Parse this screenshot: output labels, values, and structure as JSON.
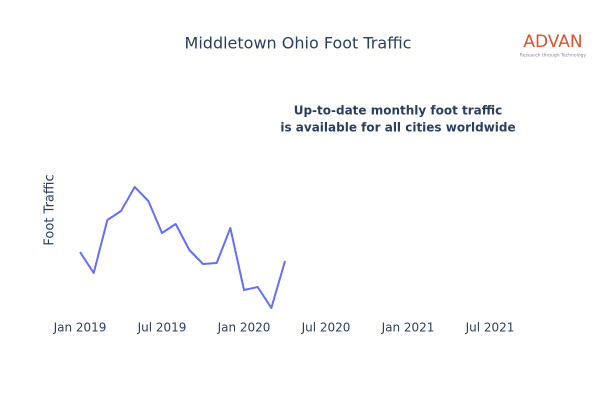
{
  "chart_data": {
    "type": "line",
    "title": "Middletown Ohio Foot Traffic",
    "y_label": "Foot Traffic",
    "annotation": [
      "Up-to-date monthly foot traffic",
      "is available for all cities worldwide"
    ],
    "x": [
      "2019-01",
      "2019-02",
      "2019-03",
      "2019-04",
      "2019-05",
      "2019-06",
      "2019-07",
      "2019-08",
      "2019-09",
      "2019-10",
      "2019-11",
      "2019-12",
      "2020-01",
      "2020-02",
      "2020-03",
      "2020-04"
    ],
    "series": [
      {
        "name": "Foot Traffic",
        "color": "#636efa",
        "values": [
          68,
          47,
          100,
          109,
          133,
          119,
          87,
          96,
          70,
          56,
          57,
          92,
          30,
          33,
          12,
          59
        ]
      }
    ],
    "xlim": [
      "2018-11",
      "2021-10"
    ],
    "xticks": [
      {
        "value": "2019-01",
        "label": "Jan 2019"
      },
      {
        "value": "2019-07",
        "label": "Jul 2019"
      },
      {
        "value": "2020-01",
        "label": "Jan 2020"
      },
      {
        "value": "2020-07",
        "label": "Jul 2020"
      },
      {
        "value": "2021-01",
        "label": "Jan 2021"
      },
      {
        "value": "2021-07",
        "label": "Jul 2021"
      }
    ],
    "ylim": [
      0,
      240
    ]
  },
  "logo": {
    "name": "ADVAN",
    "tagline": "Research through Technology"
  }
}
